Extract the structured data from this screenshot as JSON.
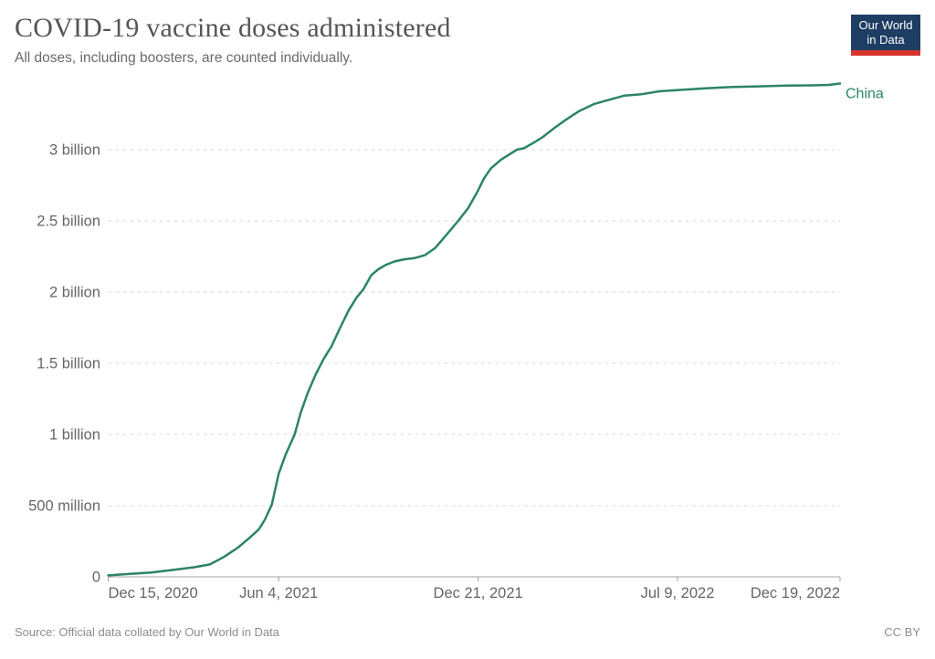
{
  "header": {
    "title": "COVID-19 vaccine doses administered",
    "subtitle": "All doses, including boosters, are counted individually."
  },
  "logo": {
    "line1": "Our World",
    "line2": "in Data",
    "bg_color": "#1d3d63",
    "bar_color": "#d7342e"
  },
  "chart_data": {
    "type": "line",
    "title": "COVID-19 vaccine doses administered",
    "unit": "doses (billions)",
    "grid": "dashed horizontal gridlines",
    "legend_position": "line-end label",
    "x_start": "2020-12-15",
    "x_end": "2022-12-19",
    "ylim": [
      0,
      3.5
    ],
    "y_ticks": [
      {
        "label": "0",
        "value": 0
      },
      {
        "label": "500 million",
        "value": 0.5
      },
      {
        "label": "1 billion",
        "value": 1
      },
      {
        "label": "1.5 billion",
        "value": 1.5
      },
      {
        "label": "2 billion",
        "value": 2
      },
      {
        "label": "2.5 billion",
        "value": 2.5
      },
      {
        "label": "3 billion",
        "value": 3
      }
    ],
    "x_ticks": [
      {
        "label": "Dec 15, 2020",
        "date": "2020-12-15",
        "align": "start"
      },
      {
        "label": "Jun 4, 2021",
        "date": "2021-06-04",
        "align": "middle"
      },
      {
        "label": "Dec 21, 2021",
        "date": "2021-12-21",
        "align": "middle"
      },
      {
        "label": "Jul 9, 2022",
        "date": "2022-07-09",
        "align": "middle"
      },
      {
        "label": "Dec 19, 2022",
        "date": "2022-12-19",
        "align": "end"
      }
    ],
    "series": [
      {
        "name": "China",
        "color": "#2C8465",
        "points": [
          [
            "2020-12-15",
            0.01
          ],
          [
            "2021-01-04",
            0.02
          ],
          [
            "2021-01-27",
            0.03
          ],
          [
            "2021-02-19",
            0.05
          ],
          [
            "2021-03-11",
            0.067
          ],
          [
            "2021-03-27",
            0.087
          ],
          [
            "2021-04-10",
            0.14
          ],
          [
            "2021-04-24",
            0.205
          ],
          [
            "2021-05-05",
            0.27
          ],
          [
            "2021-05-15",
            0.333
          ],
          [
            "2021-05-21",
            0.4
          ],
          [
            "2021-05-28",
            0.505
          ],
          [
            "2021-06-04",
            0.724
          ],
          [
            "2021-06-11",
            0.86
          ],
          [
            "2021-06-20",
            1.0
          ],
          [
            "2021-06-26",
            1.15
          ],
          [
            "2021-07-03",
            1.29
          ],
          [
            "2021-07-11",
            1.42
          ],
          [
            "2021-07-19",
            1.53
          ],
          [
            "2021-07-27",
            1.62
          ],
          [
            "2021-08-04",
            1.74
          ],
          [
            "2021-08-13",
            1.87
          ],
          [
            "2021-08-21",
            1.96
          ],
          [
            "2021-08-28",
            2.02
          ],
          [
            "2021-09-05",
            2.12
          ],
          [
            "2021-09-12",
            2.16
          ],
          [
            "2021-09-19",
            2.19
          ],
          [
            "2021-09-28",
            2.215
          ],
          [
            "2021-10-08",
            2.23
          ],
          [
            "2021-10-19",
            2.24
          ],
          [
            "2021-10-29",
            2.26
          ],
          [
            "2021-11-08",
            2.31
          ],
          [
            "2021-11-19",
            2.4
          ],
          [
            "2021-12-01",
            2.5
          ],
          [
            "2021-12-11",
            2.59
          ],
          [
            "2021-12-20",
            2.7
          ],
          [
            "2021-12-27",
            2.8
          ],
          [
            "2022-01-03",
            2.87
          ],
          [
            "2022-01-13",
            2.93
          ],
          [
            "2022-01-22",
            2.97
          ],
          [
            "2022-01-29",
            3.0
          ],
          [
            "2022-02-05",
            3.01
          ],
          [
            "2022-02-15",
            3.05
          ],
          [
            "2022-02-24",
            3.09
          ],
          [
            "2022-03-07",
            3.15
          ],
          [
            "2022-03-19",
            3.21
          ],
          [
            "2022-04-01",
            3.27
          ],
          [
            "2022-04-16",
            3.32
          ],
          [
            "2022-05-01",
            3.35
          ],
          [
            "2022-05-17",
            3.38
          ],
          [
            "2022-06-03",
            3.39
          ],
          [
            "2022-06-21",
            3.41
          ],
          [
            "2022-07-12",
            3.42
          ],
          [
            "2022-08-04",
            3.43
          ],
          [
            "2022-08-31",
            3.44
          ],
          [
            "2022-09-28",
            3.445
          ],
          [
            "2022-10-27",
            3.45
          ],
          [
            "2022-11-22",
            3.452
          ],
          [
            "2022-12-08",
            3.455
          ],
          [
            "2022-12-19",
            3.465
          ]
        ]
      }
    ]
  },
  "footer": {
    "source": "Source: Official data collated by Our World in Data",
    "license": "CC BY"
  }
}
